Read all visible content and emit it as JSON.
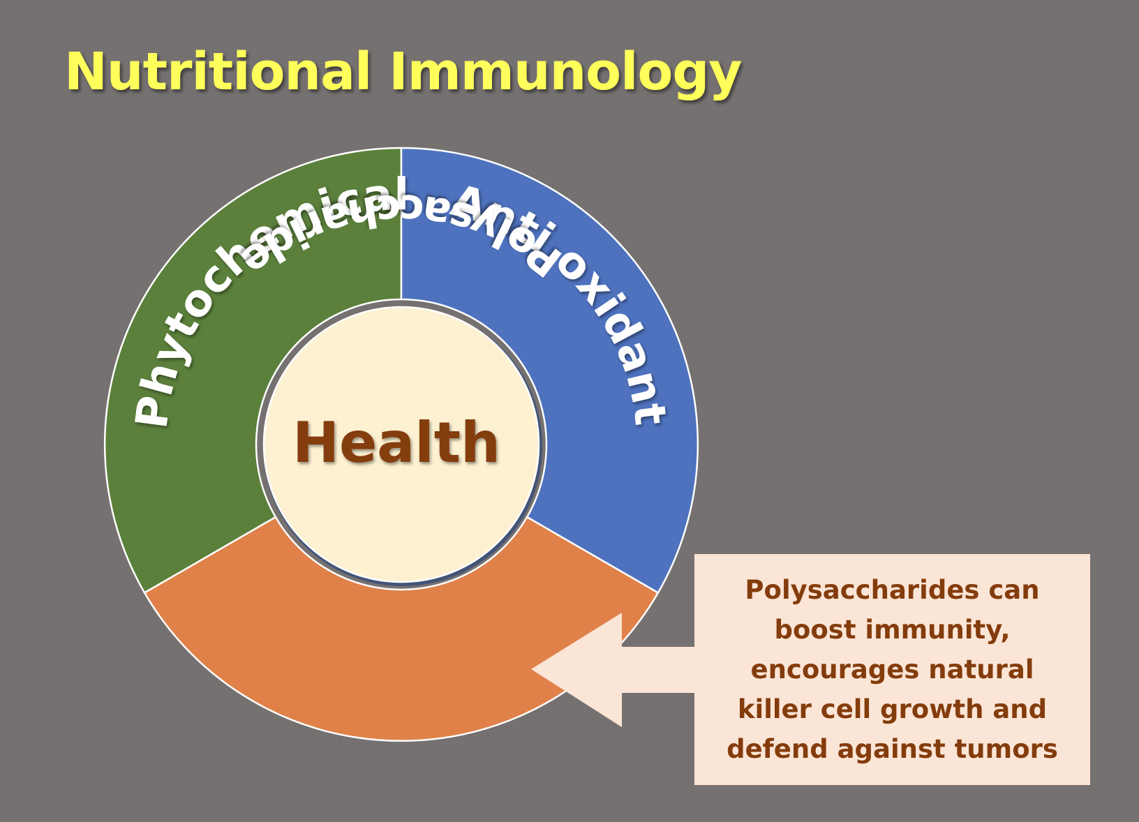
{
  "title": "Nutritional Immunology",
  "diagram": {
    "center": "Health",
    "segments": {
      "phytochemical": "Phytochemical",
      "antioxidant": "Anti oxidant",
      "polysaccharide": "Polysaccharide"
    }
  },
  "callout": {
    "text": "Polysaccharides can boost immunity, encourages natural killer cell growth and defend against tumors"
  },
  "colors": {
    "background": "#767171",
    "title": "#FFFF5B",
    "phytochemical": "#5B803B",
    "antioxidant": "#4E72BE",
    "polysaccharide": "#E0814A",
    "center_fill": "#FDF1D2",
    "center_text": "#843C0C",
    "callout_fill": "#FBE5D6",
    "callout_text": "#843C0C"
  }
}
